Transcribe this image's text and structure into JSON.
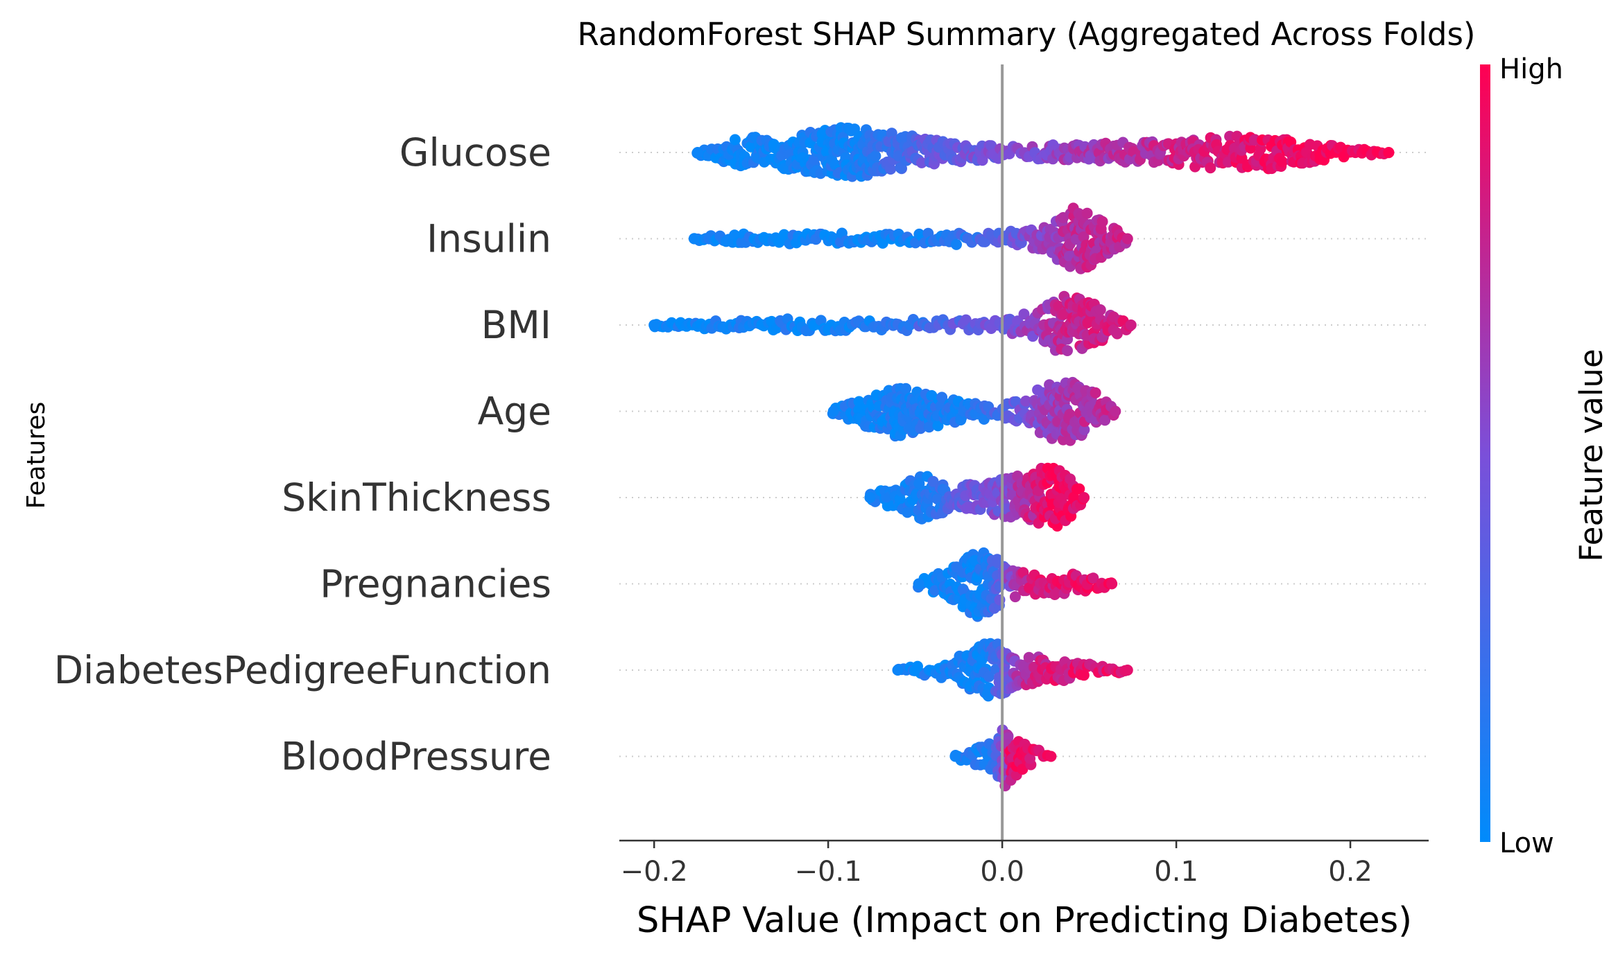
{
  "chart_data": {
    "type": "scatter",
    "subtype": "shap-beeswarm",
    "title": "RandomForest SHAP Summary (Aggregated Across Folds)",
    "xlabel": "SHAP Value (Impact on Predicting Diabetes)",
    "ylabel": "Features",
    "xlim": [
      -0.22,
      0.245
    ],
    "xticks": [
      -0.2,
      -0.1,
      0.0,
      0.1,
      0.2
    ],
    "xtick_labels": [
      "−0.2",
      "−0.1",
      "0.0",
      "0.1",
      "0.2"
    ],
    "zero_line": 0.0,
    "grid": false,
    "colorbar": {
      "title": "Feature value",
      "high_label": "High",
      "low_label": "Low",
      "low_color": "#008bfb",
      "high_color": "#ff0052"
    },
    "features": [
      {
        "name": "Glucose",
        "min": -0.175,
        "max": 0.222,
        "spread_profile": [
          [
            -0.175,
            0.06
          ],
          [
            -0.15,
            0.42
          ],
          [
            -0.12,
            0.5
          ],
          [
            -0.09,
            0.75
          ],
          [
            -0.06,
            0.55
          ],
          [
            -0.03,
            0.3
          ],
          [
            0.0,
            0.2
          ],
          [
            0.03,
            0.22
          ],
          [
            0.06,
            0.28
          ],
          [
            0.09,
            0.32
          ],
          [
            0.12,
            0.45
          ],
          [
            0.15,
            0.5
          ],
          [
            0.18,
            0.28
          ],
          [
            0.205,
            0.1
          ],
          [
            0.222,
            0.05
          ]
        ],
        "color_profile": [
          [
            -0.175,
            0.05
          ],
          [
            -0.12,
            0.05
          ],
          [
            -0.08,
            0.1
          ],
          [
            -0.05,
            0.35
          ],
          [
            0.0,
            0.5
          ],
          [
            0.05,
            0.65
          ],
          [
            0.1,
            0.78
          ],
          [
            0.15,
            0.92
          ],
          [
            0.222,
            1.0
          ]
        ]
      },
      {
        "name": "Insulin",
        "min": -0.177,
        "max": 0.072,
        "spread_profile": [
          [
            -0.177,
            0.07
          ],
          [
            -0.15,
            0.14
          ],
          [
            -0.1,
            0.16
          ],
          [
            -0.05,
            0.16
          ],
          [
            0.0,
            0.18
          ],
          [
            0.025,
            0.35
          ],
          [
            0.04,
            0.9
          ],
          [
            0.05,
            0.85
          ],
          [
            0.062,
            0.45
          ],
          [
            0.072,
            0.08
          ]
        ],
        "color_profile": [
          [
            -0.177,
            0.05
          ],
          [
            -0.05,
            0.08
          ],
          [
            -0.01,
            0.25
          ],
          [
            0.02,
            0.55
          ],
          [
            0.04,
            0.72
          ],
          [
            0.072,
            0.8
          ]
        ]
      },
      {
        "name": "BMI",
        "min": -0.2,
        "max": 0.074,
        "spread_profile": [
          [
            -0.2,
            0.06
          ],
          [
            -0.17,
            0.12
          ],
          [
            -0.12,
            0.18
          ],
          [
            -0.08,
            0.16
          ],
          [
            -0.04,
            0.17
          ],
          [
            0.0,
            0.2
          ],
          [
            0.02,
            0.4
          ],
          [
            0.038,
            0.95
          ],
          [
            0.055,
            0.55
          ],
          [
            0.074,
            0.08
          ]
        ],
        "color_profile": [
          [
            -0.2,
            0.04
          ],
          [
            -0.08,
            0.08
          ],
          [
            -0.04,
            0.3
          ],
          [
            0.0,
            0.45
          ],
          [
            0.02,
            0.62
          ],
          [
            0.04,
            0.78
          ],
          [
            0.074,
            0.82
          ]
        ]
      },
      {
        "name": "Age",
        "min": -0.097,
        "max": 0.065,
        "spread_profile": [
          [
            -0.097,
            0.1
          ],
          [
            -0.08,
            0.42
          ],
          [
            -0.06,
            0.75
          ],
          [
            -0.04,
            0.5
          ],
          [
            -0.02,
            0.28
          ],
          [
            0.0,
            0.18
          ],
          [
            0.012,
            0.35
          ],
          [
            0.025,
            0.78
          ],
          [
            0.04,
            0.85
          ],
          [
            0.055,
            0.5
          ],
          [
            0.065,
            0.1
          ]
        ],
        "color_profile": [
          [
            -0.097,
            0.05
          ],
          [
            -0.02,
            0.12
          ],
          [
            0.0,
            0.3
          ],
          [
            0.02,
            0.55
          ],
          [
            0.04,
            0.68
          ],
          [
            0.065,
            0.75
          ]
        ]
      },
      {
        "name": "SkinThickness",
        "min": -0.076,
        "max": 0.047,
        "spread_profile": [
          [
            -0.076,
            0.1
          ],
          [
            -0.06,
            0.35
          ],
          [
            -0.045,
            0.7
          ],
          [
            -0.03,
            0.35
          ],
          [
            -0.01,
            0.4
          ],
          [
            0.0,
            0.55
          ],
          [
            0.015,
            0.7
          ],
          [
            0.028,
            0.95
          ],
          [
            0.04,
            0.55
          ],
          [
            0.047,
            0.1
          ]
        ],
        "color_profile": [
          [
            -0.076,
            0.05
          ],
          [
            -0.04,
            0.12
          ],
          [
            -0.025,
            0.4
          ],
          [
            0.0,
            0.5
          ],
          [
            0.015,
            0.75
          ],
          [
            0.03,
            0.95
          ],
          [
            0.047,
            0.92
          ]
        ]
      },
      {
        "name": "Pregnancies",
        "min": -0.048,
        "max": 0.063,
        "spread_profile": [
          [
            -0.048,
            0.1
          ],
          [
            -0.03,
            0.45
          ],
          [
            -0.015,
            0.95
          ],
          [
            -0.005,
            0.8
          ],
          [
            0.005,
            0.4
          ],
          [
            0.02,
            0.3
          ],
          [
            0.035,
            0.32
          ],
          [
            0.05,
            0.22
          ],
          [
            0.063,
            0.07
          ]
        ],
        "color_profile": [
          [
            -0.048,
            0.06
          ],
          [
            -0.01,
            0.08
          ],
          [
            0.0,
            0.4
          ],
          [
            0.01,
            0.78
          ],
          [
            0.03,
            0.88
          ],
          [
            0.063,
            0.92
          ]
        ]
      },
      {
        "name": "DiabetesPedigreeFunction",
        "min": -0.06,
        "max": 0.072,
        "spread_profile": [
          [
            -0.06,
            0.07
          ],
          [
            -0.04,
            0.18
          ],
          [
            -0.02,
            0.5
          ],
          [
            -0.01,
            0.8
          ],
          [
            0.0,
            0.75
          ],
          [
            0.01,
            0.45
          ],
          [
            0.03,
            0.35
          ],
          [
            0.05,
            0.2
          ],
          [
            0.072,
            0.06
          ]
        ],
        "color_profile": [
          [
            -0.06,
            0.05
          ],
          [
            -0.01,
            0.08
          ],
          [
            0.0,
            0.35
          ],
          [
            0.01,
            0.7
          ],
          [
            0.03,
            0.85
          ],
          [
            0.072,
            0.9
          ]
        ]
      },
      {
        "name": "BloodPressure",
        "min": -0.027,
        "max": 0.028,
        "spread_profile": [
          [
            -0.027,
            0.1
          ],
          [
            -0.015,
            0.25
          ],
          [
            -0.005,
            0.45
          ],
          [
            0.0,
            0.95
          ],
          [
            0.005,
            0.7
          ],
          [
            0.015,
            0.3
          ],
          [
            0.028,
            0.08
          ]
        ],
        "color_profile": [
          [
            -0.027,
            0.06
          ],
          [
            -0.005,
            0.15
          ],
          [
            0.0,
            0.5
          ],
          [
            0.005,
            0.9
          ],
          [
            0.028,
            0.95
          ]
        ]
      }
    ]
  }
}
